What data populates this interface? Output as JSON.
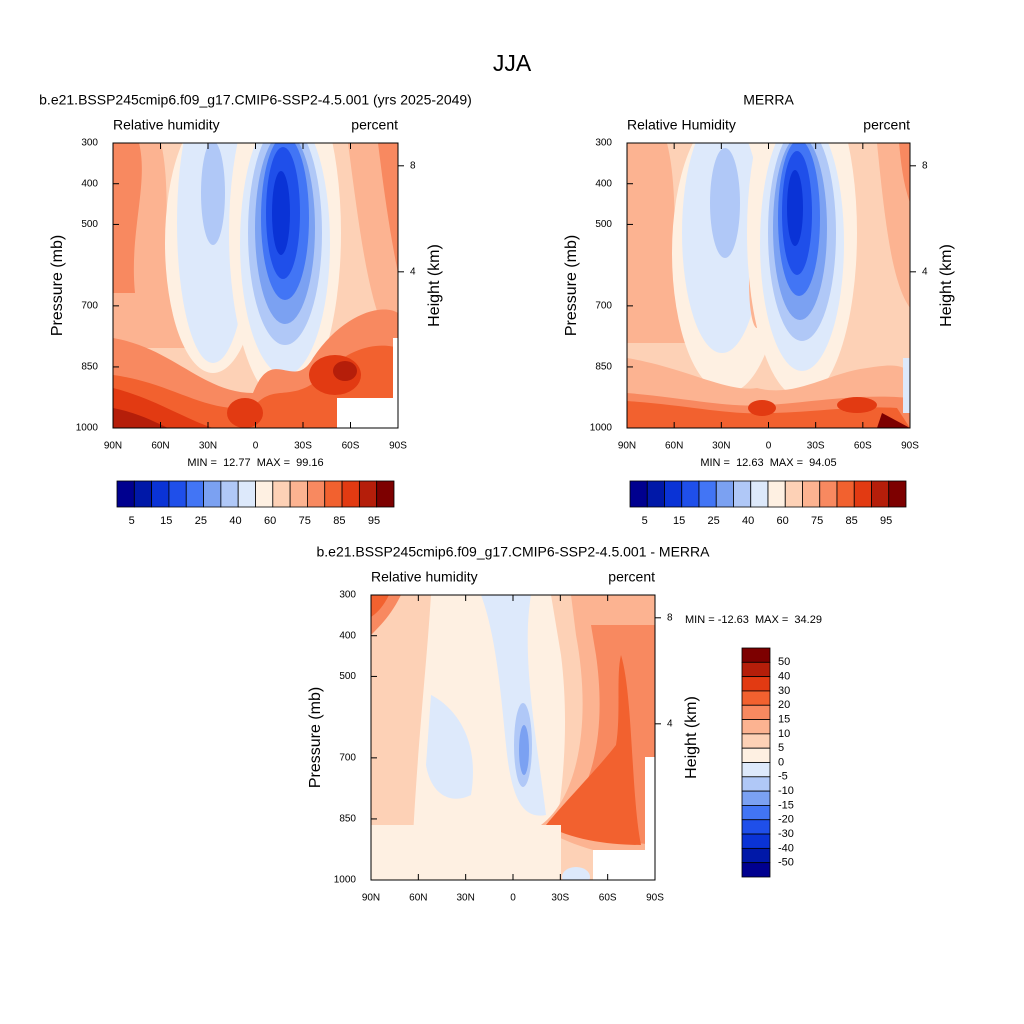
{
  "figure_title": "JJA",
  "chart_data": [
    {
      "type": "contour",
      "title": "b.e21.BSSP245cmip6.f09_g17.CMIP6-SSP2-4.5.001 (yrs 2025-2049)",
      "left_label": "Relative humidity",
      "right_label": "percent",
      "ylabel": "Pressure (mb)",
      "y2label": "Height (km)",
      "xlim": [
        90,
        -90
      ],
      "xticks": [
        {
          "value": 90,
          "label": "90N"
        },
        {
          "value": 60,
          "label": "60N"
        },
        {
          "value": 30,
          "label": "30N"
        },
        0,
        {
          "value": -30,
          "label": "30S"
        },
        {
          "value": -60,
          "label": "60S"
        },
        {
          "value": -90,
          "label": "90S"
        }
      ],
      "ylim": [
        1000,
        300
      ],
      "yticks": [
        300,
        400,
        500,
        700,
        850,
        1000
      ],
      "y2ticks": [
        4,
        8
      ],
      "stats": "MIN =  12.77  MAX =  99.16",
      "colorbar": {
        "orientation": "horizontal",
        "colors": [
          "#00008f",
          "#0018a8",
          "#0a33d6",
          "#1f4fea",
          "#4275f5",
          "#7ba1f2",
          "#b0c8f7",
          "#dde9fb",
          "#fef0e2",
          "#fdd1b6",
          "#fcb391",
          "#f88960",
          "#f2612f",
          "#e23a12",
          "#b51e0a",
          "#7d0000"
        ],
        "labels": [
          5,
          15,
          25,
          40,
          60,
          75,
          85,
          95
        ]
      }
    },
    {
      "type": "contour",
      "title": "MERRA",
      "left_label": "Relative Humidity",
      "right_label": "percent",
      "ylabel": "Pressure (mb)",
      "y2label": "Height (km)",
      "xlim": [
        90,
        -90
      ],
      "xticks": [
        {
          "value": 90,
          "label": "90N"
        },
        {
          "value": 60,
          "label": "60N"
        },
        {
          "value": 30,
          "label": "30N"
        },
        0,
        {
          "value": -30,
          "label": "30S"
        },
        {
          "value": -60,
          "label": "60S"
        },
        {
          "value": -90,
          "label": "90S"
        }
      ],
      "ylim": [
        1000,
        300
      ],
      "yticks": [
        300,
        400,
        500,
        700,
        850,
        1000
      ],
      "y2ticks": [
        4,
        8
      ],
      "stats": "MIN =  12.63  MAX =  94.05",
      "colorbar": {
        "orientation": "horizontal",
        "colors": [
          "#00008f",
          "#0018a8",
          "#0a33d6",
          "#1f4fea",
          "#4275f5",
          "#7ba1f2",
          "#b0c8f7",
          "#dde9fb",
          "#fef0e2",
          "#fdd1b6",
          "#fcb391",
          "#f88960",
          "#f2612f",
          "#e23a12",
          "#b51e0a",
          "#7d0000"
        ],
        "labels": [
          5,
          15,
          25,
          40,
          60,
          75,
          85,
          95
        ]
      }
    },
    {
      "type": "contour",
      "title": "b.e21.BSSP245cmip6.f09_g17.CMIP6-SSP2-4.5.001 - MERRA",
      "left_label": "Relative humidity",
      "right_label": "percent",
      "ylabel": "Pressure (mb)",
      "y2label": "Height (km)",
      "xlim": [
        90,
        -90
      ],
      "xticks": [
        {
          "value": 90,
          "label": "90N"
        },
        {
          "value": 60,
          "label": "60N"
        },
        {
          "value": 30,
          "label": "30N"
        },
        0,
        {
          "value": -30,
          "label": "30S"
        },
        {
          "value": -60,
          "label": "60S"
        },
        {
          "value": -90,
          "label": "90S"
        }
      ],
      "ylim": [
        1000,
        300
      ],
      "yticks": [
        300,
        400,
        500,
        700,
        850,
        1000
      ],
      "y2ticks": [
        4,
        8
      ],
      "stats": "MIN = -12.63  MAX =  34.29",
      "colorbar": {
        "orientation": "vertical",
        "colors": [
          "#7d0000",
          "#b51e0a",
          "#e23a12",
          "#f2612f",
          "#f88960",
          "#fcb391",
          "#fdd1b6",
          "#fef0e2",
          "#dde9fb",
          "#b0c8f7",
          "#7ba1f2",
          "#4275f5",
          "#1f4fea",
          "#0a33d6",
          "#0018a8",
          "#00008f"
        ],
        "labels": [
          50,
          40,
          30,
          20,
          15,
          10,
          5,
          0,
          -5,
          -10,
          -15,
          -20,
          -30,
          -40,
          -50
        ]
      }
    }
  ]
}
